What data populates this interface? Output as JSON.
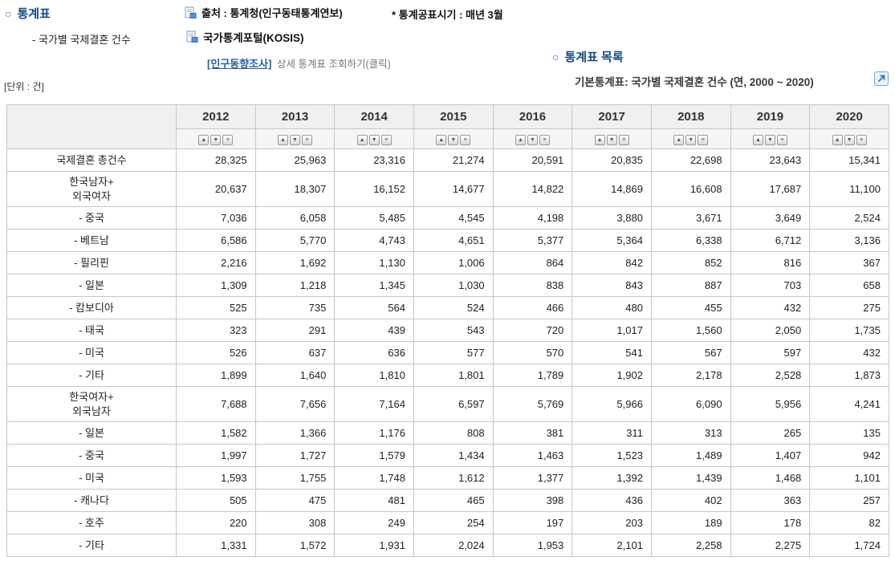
{
  "header": {
    "bullet": "○",
    "title": "통계표",
    "subtitle": "- 국가별 국제결혼 건수",
    "source": "출처 : 통계청(인구동태통계연보)",
    "publish_schedule": "* 통계공표시기 : 매년 3월",
    "portal": "국가통계포털(KOSIS)",
    "survey_link": "[인구동향조사]",
    "survey_link_suffix": "상세 통계표 조회하기(클릭)",
    "unit": "[단위 : 건]"
  },
  "table_list": {
    "bullet": "○",
    "title": "통계표 목록",
    "item": "기본통계표: 국가별 국제결혼 건수 (연, 2000 ~ 2020)"
  },
  "colors": {
    "title_blue": "#124a85",
    "link_blue": "#2a5caa",
    "header_gray": "#f0f0f0"
  },
  "table": {
    "sort_icons": {
      "asc": "▲",
      "desc": "▼",
      "list": "≡"
    },
    "years": [
      "2012",
      "2013",
      "2014",
      "2015",
      "2016",
      "2017",
      "2018",
      "2019",
      "2020"
    ],
    "rows": [
      {
        "label": "국제결혼 총건수",
        "values": [
          "28,325",
          "25,963",
          "23,316",
          "21,274",
          "20,591",
          "20,835",
          "22,698",
          "23,643",
          "15,341"
        ]
      },
      {
        "label": "한국남자+\n외국여자",
        "tall": true,
        "values": [
          "20,637",
          "18,307",
          "16,152",
          "14,677",
          "14,822",
          "14,869",
          "16,608",
          "17,687",
          "11,100"
        ]
      },
      {
        "label": "- 중국",
        "values": [
          "7,036",
          "6,058",
          "5,485",
          "4,545",
          "4,198",
          "3,880",
          "3,671",
          "3,649",
          "2,524"
        ]
      },
      {
        "label": "- 베트남",
        "values": [
          "6,586",
          "5,770",
          "4,743",
          "4,651",
          "5,377",
          "5,364",
          "6,338",
          "6,712",
          "3,136"
        ]
      },
      {
        "label": "- 필리핀",
        "values": [
          "2,216",
          "1,692",
          "1,130",
          "1,006",
          "864",
          "842",
          "852",
          "816",
          "367"
        ]
      },
      {
        "label": "- 일본",
        "values": [
          "1,309",
          "1,218",
          "1,345",
          "1,030",
          "838",
          "843",
          "887",
          "703",
          "658"
        ]
      },
      {
        "label": "- 캄보디아",
        "values": [
          "525",
          "735",
          "564",
          "524",
          "466",
          "480",
          "455",
          "432",
          "275"
        ]
      },
      {
        "label": "- 태국",
        "values": [
          "323",
          "291",
          "439",
          "543",
          "720",
          "1,017",
          "1,560",
          "2,050",
          "1,735"
        ]
      },
      {
        "label": "- 미국",
        "values": [
          "526",
          "637",
          "636",
          "577",
          "570",
          "541",
          "567",
          "597",
          "432"
        ]
      },
      {
        "label": "- 기타",
        "values": [
          "1,899",
          "1,640",
          "1,810",
          "1,801",
          "1,789",
          "1,902",
          "2,178",
          "2,528",
          "1,873"
        ]
      },
      {
        "label": "한국여자+\n외국남자",
        "tall": true,
        "values": [
          "7,688",
          "7,656",
          "7,164",
          "6,597",
          "5,769",
          "5,966",
          "6,090",
          "5,956",
          "4,241"
        ]
      },
      {
        "label": "- 일본",
        "values": [
          "1,582",
          "1,366",
          "1,176",
          "808",
          "381",
          "311",
          "313",
          "265",
          "135"
        ]
      },
      {
        "label": "- 중국",
        "values": [
          "1,997",
          "1,727",
          "1,579",
          "1,434",
          "1,463",
          "1,523",
          "1,489",
          "1,407",
          "942"
        ]
      },
      {
        "label": "- 미국",
        "values": [
          "1,593",
          "1,755",
          "1,748",
          "1,612",
          "1,377",
          "1,392",
          "1,439",
          "1,468",
          "1,101"
        ]
      },
      {
        "label": "- 캐나다",
        "values": [
          "505",
          "475",
          "481",
          "465",
          "398",
          "436",
          "402",
          "363",
          "257"
        ]
      },
      {
        "label": "- 호주",
        "values": [
          "220",
          "308",
          "249",
          "254",
          "197",
          "203",
          "189",
          "178",
          "82"
        ]
      },
      {
        "label": "- 기타",
        "values": [
          "1,331",
          "1,572",
          "1,931",
          "2,024",
          "1,953",
          "2,101",
          "2,258",
          "2,275",
          "1,724"
        ]
      }
    ]
  }
}
